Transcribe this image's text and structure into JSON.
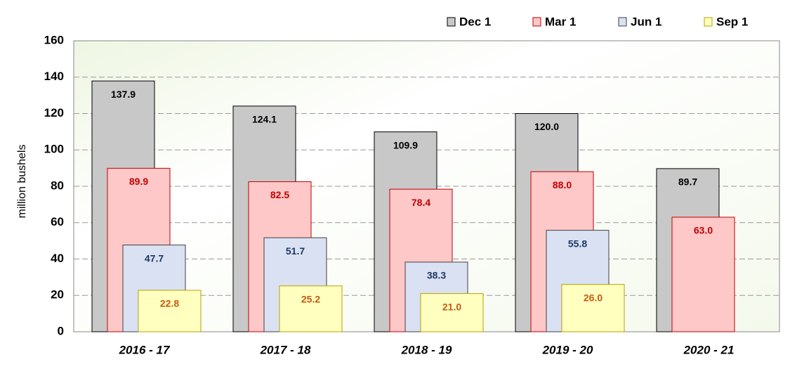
{
  "chart_data": {
    "type": "bar",
    "y_label": "million bushels",
    "categories": [
      "2016 - 17",
      "2017 - 18",
      "2018 - 19",
      "2019 - 20",
      "2020 - 21"
    ],
    "series": [
      {
        "name": "Dec 1",
        "color": "#c8c8c8",
        "border": "#000000",
        "label_color": "#000000",
        "values": [
          137.9,
          124.1,
          109.9,
          120.0,
          89.7
        ],
        "value_labels": [
          "137.9",
          "124.1",
          "109.9",
          "120.0",
          "89.7"
        ]
      },
      {
        "name": "Mar 1",
        "color": "#ffc8c8",
        "border": "#c00000",
        "label_color": "#c00000",
        "values": [
          89.9,
          82.5,
          78.4,
          88.0,
          63.0
        ],
        "value_labels": [
          "89.9",
          "82.5",
          "78.4",
          "88.0",
          "63.0"
        ]
      },
      {
        "name": "Jun 1",
        "color": "#d9e1f2",
        "border": "#404040",
        "label_color": "#1f3864",
        "values": [
          47.7,
          51.7,
          38.3,
          55.8,
          null
        ],
        "value_labels": [
          "47.7",
          "51.7",
          "38.3",
          "55.8",
          null
        ]
      },
      {
        "name": "Sep 1",
        "color": "#ffffc0",
        "border": "#b8a000",
        "label_color": "#c55a11",
        "values": [
          22.8,
          25.2,
          21.0,
          26.0,
          null
        ],
        "value_labels": [
          "22.8",
          "25.2",
          "21.0",
          "26.0",
          null
        ]
      }
    ],
    "ylim": [
      0,
      160
    ],
    "yticks": [
      0,
      20,
      40,
      60,
      80,
      100,
      120,
      140,
      160
    ],
    "grid": true
  }
}
